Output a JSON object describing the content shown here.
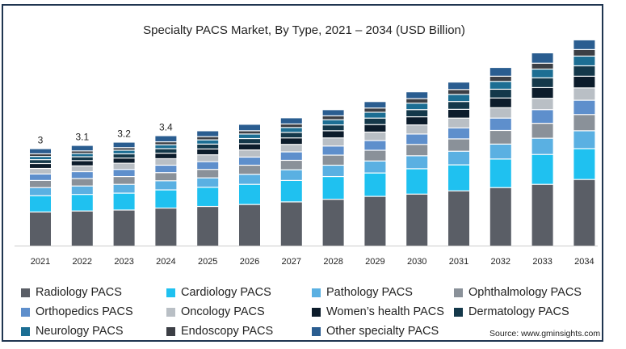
{
  "chart_data": {
    "type": "bar",
    "stacked": true,
    "title": "Specialty PACS Market, By Type, 2021 – 2034 (USD Billion)",
    "xlabel": "",
    "ylabel": "",
    "grid": false,
    "legend_position": "bottom",
    "categories": [
      "2021",
      "2022",
      "2023",
      "2024",
      "2025",
      "2026",
      "2027",
      "2028",
      "2029",
      "2030",
      "2031",
      "2032",
      "2033",
      "2034"
    ],
    "totals": [
      3.0,
      3.1,
      3.2,
      3.4,
      3.55,
      3.75,
      3.95,
      4.2,
      4.45,
      4.75,
      5.05,
      5.5,
      5.95,
      6.35
    ],
    "total_labels": [
      "3",
      "3.1",
      "3.2",
      "3.4"
    ],
    "series": [
      {
        "name": "Radiology PACS",
        "color": "#5a5e66",
        "values": [
          1.05,
          1.08,
          1.11,
          1.17,
          1.22,
          1.28,
          1.36,
          1.44,
          1.53,
          1.6,
          1.7,
          1.8,
          1.9,
          2.05
        ]
      },
      {
        "name": "Cardiology PACS",
        "color": "#1fc1f0",
        "values": [
          0.5,
          0.51,
          0.52,
          0.56,
          0.59,
          0.62,
          0.66,
          0.7,
          0.72,
          0.78,
          0.8,
          0.88,
          0.92,
          0.95
        ]
      },
      {
        "name": "Pathology PACS",
        "color": "#5ab0e2",
        "values": [
          0.25,
          0.26,
          0.27,
          0.28,
          0.29,
          0.31,
          0.33,
          0.35,
          0.37,
          0.4,
          0.42,
          0.46,
          0.5,
          0.55
        ]
      },
      {
        "name": "Ophthalmology PACS",
        "color": "#8a9199",
        "values": [
          0.22,
          0.23,
          0.24,
          0.25,
          0.26,
          0.28,
          0.29,
          0.31,
          0.33,
          0.35,
          0.38,
          0.42,
          0.46,
          0.5
        ]
      },
      {
        "name": "Orthopedics PACS",
        "color": "#5e8fcc",
        "values": [
          0.2,
          0.21,
          0.22,
          0.23,
          0.24,
          0.25,
          0.26,
          0.28,
          0.3,
          0.32,
          0.34,
          0.38,
          0.42,
          0.44
        ]
      },
      {
        "name": "Oncology PACS",
        "color": "#b9bfc5",
        "values": [
          0.17,
          0.18,
          0.19,
          0.2,
          0.21,
          0.22,
          0.23,
          0.25,
          0.26,
          0.28,
          0.3,
          0.32,
          0.35,
          0.38
        ]
      },
      {
        "name": "Women’s health PACS",
        "color": "#0c1c2b",
        "values": [
          0.15,
          0.16,
          0.16,
          0.17,
          0.18,
          0.19,
          0.2,
          0.22,
          0.23,
          0.25,
          0.27,
          0.3,
          0.33,
          0.36
        ]
      },
      {
        "name": "Dermatology PACS",
        "color": "#14384a",
        "values": [
          0.12,
          0.12,
          0.13,
          0.14,
          0.15,
          0.16,
          0.17,
          0.18,
          0.2,
          0.22,
          0.24,
          0.27,
          0.3,
          0.32
        ]
      },
      {
        "name": "Neurology PACS",
        "color": "#1c6e93",
        "values": [
          0.1,
          0.1,
          0.11,
          0.12,
          0.13,
          0.14,
          0.15,
          0.16,
          0.18,
          0.2,
          0.22,
          0.24,
          0.27,
          0.3
        ]
      },
      {
        "name": "Endoscopy PACS",
        "color": "#3c3f45",
        "values": [
          0.08,
          0.08,
          0.08,
          0.09,
          0.1,
          0.1,
          0.11,
          0.12,
          0.13,
          0.14,
          0.15,
          0.16,
          0.18,
          0.2
        ]
      },
      {
        "name": "Other specialty PACS",
        "color": "#2a5d90",
        "values": [
          0.16,
          0.17,
          0.17,
          0.19,
          0.18,
          0.2,
          0.19,
          0.19,
          0.2,
          0.21,
          0.23,
          0.27,
          0.32,
          0.3
        ]
      }
    ]
  },
  "source": "Source: www.gminsights.com"
}
